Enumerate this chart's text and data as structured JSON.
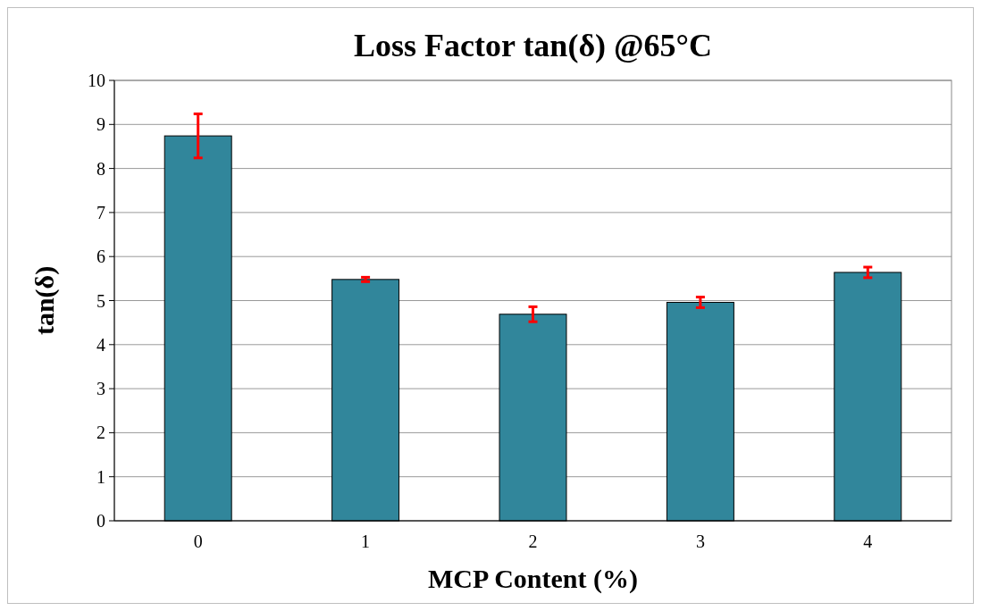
{
  "chart_data": {
    "type": "bar",
    "title": "Loss Factor tan(δ) @65°C",
    "xlabel": "MCP Content  (%)",
    "ylabel": "tan(δ)",
    "categories": [
      "0",
      "1",
      "2",
      "3",
      "4"
    ],
    "series": [
      {
        "color": "#31869b",
        "values": [
          8.74,
          5.48,
          4.69,
          4.96,
          5.64
        ],
        "errors": [
          0.5,
          0.05,
          0.17,
          0.12,
          0.12
        ]
      }
    ],
    "ylim": [
      0,
      10
    ],
    "yticks": [
      0,
      1,
      2,
      3,
      4,
      5,
      6,
      7,
      8,
      9,
      10
    ],
    "grid": "y"
  }
}
